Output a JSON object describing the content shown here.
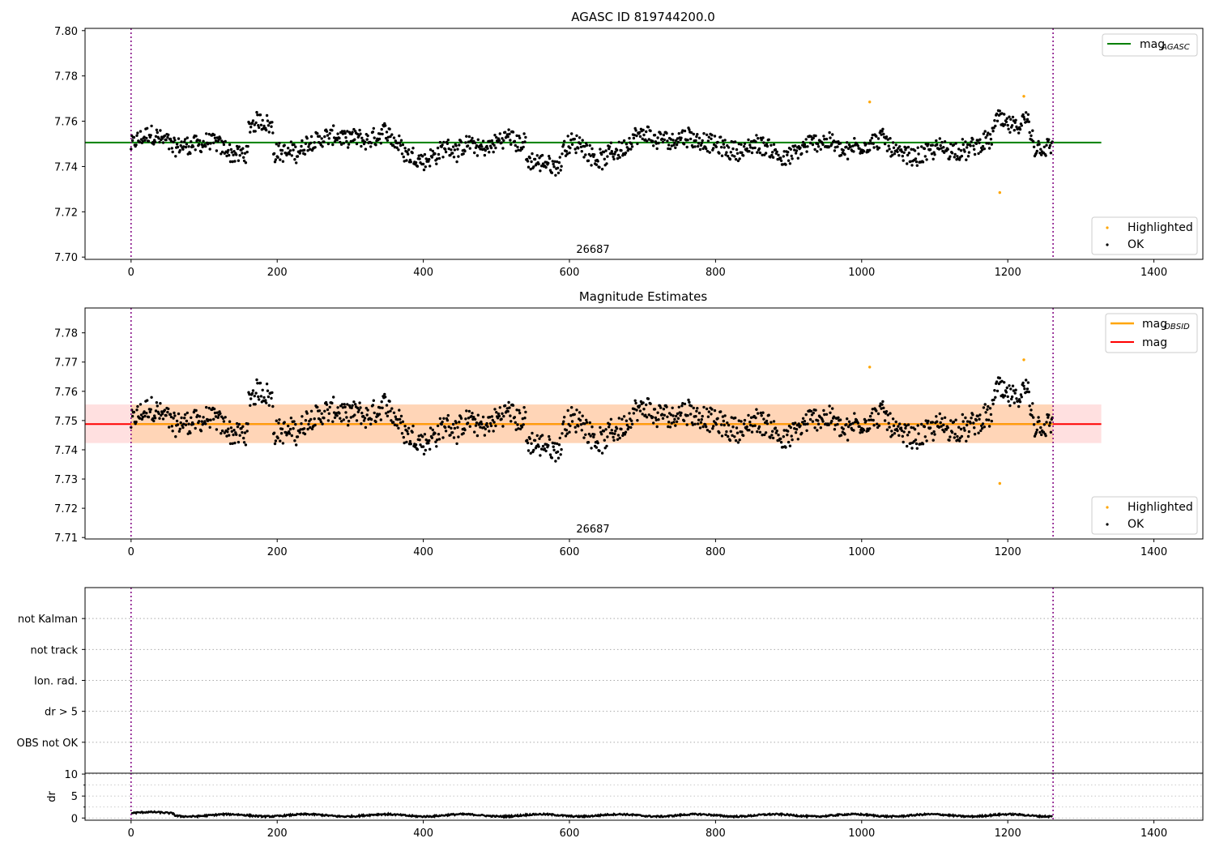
{
  "chart_data": [
    {
      "type": "scatter",
      "title": "AGASC ID 819744200.0",
      "xlabel": "",
      "ylabel": "",
      "xlim": [
        -63,
        1467
      ],
      "ylim": [
        7.699,
        7.801
      ],
      "xticks": [
        0,
        200,
        400,
        600,
        800,
        1000,
        1200,
        1400
      ],
      "yticks": [
        7.7,
        7.72,
        7.74,
        7.76,
        7.78,
        7.8
      ],
      "ytick_labels": [
        "7.70",
        "7.72",
        "7.74",
        "7.76",
        "7.78",
        "7.80"
      ],
      "vlines": [
        0,
        1262
      ],
      "obsid_label": {
        "text": "26687",
        "x": 631
      },
      "hlines": [
        {
          "name": "mag",
          "subscript": "AGASC",
          "y": 7.7506,
          "x": [
            -63,
            1328
          ],
          "color": "#008000"
        }
      ],
      "series": [
        {
          "name": "Highlighted",
          "color": "#ffa500",
          "x": [
            1011,
            1189,
            1222
          ],
          "y": [
            7.7685,
            7.7285,
            7.771
          ]
        },
        {
          "name": "OK",
          "color": "#000000",
          "n_points": 1262,
          "y_mean": 7.749,
          "y_min": 7.731,
          "y_max": 7.766
        }
      ],
      "legends": [
        {
          "position": "upper-right",
          "entries": [
            {
              "label": "mag",
              "subscript": "AGASC",
              "kind": "line",
              "color": "#008000"
            }
          ]
        },
        {
          "position": "lower-right",
          "entries": [
            {
              "label": "Highlighted",
              "kind": "dot",
              "color": "#ffa500"
            },
            {
              "label": "OK",
              "kind": "dot",
              "color": "#000000"
            }
          ]
        }
      ]
    },
    {
      "type": "scatter",
      "title": "Magnitude Estimates",
      "xlabel": "",
      "ylabel": "",
      "xlim": [
        -63,
        1467
      ],
      "ylim": [
        7.7095,
        7.7885
      ],
      "xticks": [
        0,
        200,
        400,
        600,
        800,
        1000,
        1200,
        1400
      ],
      "yticks": [
        7.71,
        7.72,
        7.73,
        7.74,
        7.75,
        7.76,
        7.77,
        7.78
      ],
      "ytick_labels": [
        "7.71",
        "7.72",
        "7.73",
        "7.74",
        "7.75",
        "7.76",
        "7.77",
        "7.78"
      ],
      "vlines": [
        0,
        1262
      ],
      "obsid_label": {
        "text": "26687",
        "x": 631
      },
      "bands": [
        {
          "name": "mag",
          "y": [
            7.7423,
            7.7555
          ],
          "x": [
            -63,
            1328
          ],
          "color": "#ff0000",
          "opacity": 0.12
        },
        {
          "name": "mag OBSID",
          "y": [
            7.7423,
            7.7555
          ],
          "x": [
            0,
            1262
          ],
          "color": "#ffa500",
          "opacity": 0.18
        }
      ],
      "hlines": [
        {
          "name": "mag",
          "y": 7.7488,
          "x": [
            -63,
            1328
          ],
          "color": "#ff0000"
        },
        {
          "name": "mag",
          "subscript": "OBSID",
          "y": 7.7488,
          "x": [
            0,
            1262
          ],
          "color": "#ffa500"
        }
      ],
      "series": [
        {
          "name": "Highlighted",
          "color": "#ffa500",
          "x": [
            1011,
            1189,
            1222
          ],
          "y": [
            7.7683,
            7.7285,
            7.7708
          ]
        },
        {
          "name": "OK",
          "color": "#000000",
          "n_points": 1262,
          "y_mean": 7.749,
          "y_min": 7.731,
          "y_max": 7.766
        }
      ],
      "legends": [
        {
          "position": "upper-right",
          "entries": [
            {
              "label": "mag",
              "subscript": "OBSID",
              "kind": "line",
              "color": "#ffa500"
            },
            {
              "label": "mag",
              "kind": "line",
              "color": "#ff0000"
            }
          ]
        },
        {
          "position": "lower-right",
          "entries": [
            {
              "label": "Highlighted",
              "kind": "dot",
              "color": "#ffa500"
            },
            {
              "label": "OK",
              "kind": "dot",
              "color": "#000000"
            }
          ]
        }
      ]
    },
    {
      "type": "scatter",
      "title": "",
      "xlim": [
        -63,
        1467
      ],
      "categories": [
        "OBS not OK",
        "dr > 5",
        "Ion. rad.",
        "not track",
        "not Kalman"
      ],
      "flag_points": [],
      "vlines": [
        0,
        1262
      ]
    },
    {
      "type": "line",
      "title": "",
      "ylabel": "dr",
      "xlim": [
        -63,
        1467
      ],
      "ylim": [
        -0.5,
        10.2
      ],
      "xticks": [
        0,
        200,
        400,
        600,
        800,
        1000,
        1200,
        1400
      ],
      "yticks": [
        0,
        5,
        10
      ],
      "ytick_labels": [
        "0",
        "5",
        "10"
      ],
      "vlines": [
        0,
        1262
      ],
      "series": [
        {
          "name": "dr",
          "color": "#000000",
          "n_points": 1262,
          "y_mean": 0.6,
          "y_min": 0.1,
          "y_max": 1.5
        }
      ]
    }
  ]
}
